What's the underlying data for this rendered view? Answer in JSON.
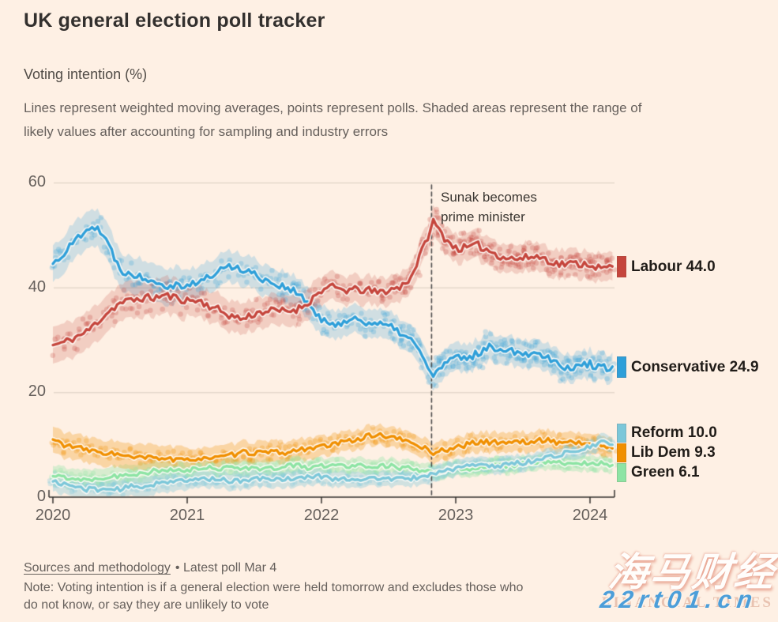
{
  "header": {
    "title": "UK general election poll tracker",
    "subtitle": "Voting intention (%)",
    "description_lines": [
      "Lines represent weighted moving averages, points represent polls. Shaded areas represent the range of",
      "likely values after accounting for sampling and industry errors"
    ]
  },
  "annotation": {
    "lines": [
      "Sunak becomes",
      "prime minister"
    ]
  },
  "footer": {
    "sources_link": "Sources and methodology",
    "latest_poll": "• Latest poll Mar 4",
    "note_lines": [
      "Note: Voting intention is if a general election were held tomorrow and excludes those who",
      "do not know, or say they are unlikely to vote"
    ]
  },
  "watermark": {
    "cjk": "海马财经",
    "ft_text": "FINANCIAL TIMES",
    "url": "22rt01.cn",
    "url_color": "#4C9ED9",
    "ft_color": "#E9C3B1"
  },
  "chart_data": {
    "type": "line",
    "title": "UK general election poll tracker",
    "ylabel": "Voting intention (%)",
    "xlabel": "",
    "grid": true,
    "legend_position": "right",
    "ylim": [
      0,
      60
    ],
    "xlim": [
      2020.0,
      2024.25
    ],
    "y_ticks": [
      0,
      20,
      40,
      60
    ],
    "x_ticks": [
      2020,
      2021,
      2022,
      2023,
      2024
    ],
    "event_line": {
      "x": 2022.82,
      "label": "Sunak becomes prime minister"
    },
    "colors": {
      "background": "#FEF0E4",
      "gridline": "#D8CCBF",
      "axis": "#33302E",
      "labour": "#C5453C",
      "conservative": "#2E9FD9",
      "reform": "#7CC7D9",
      "libdem": "#F08F00",
      "green": "#8DE4A4"
    },
    "x": [
      2020.0,
      2020.083,
      2020.167,
      2020.25,
      2020.333,
      2020.417,
      2020.5,
      2020.583,
      2020.667,
      2020.75,
      2020.833,
      2020.917,
      2021.0,
      2021.083,
      2021.167,
      2021.25,
      2021.333,
      2021.417,
      2021.5,
      2021.583,
      2021.667,
      2021.75,
      2021.833,
      2021.917,
      2022.0,
      2022.083,
      2022.167,
      2022.25,
      2022.333,
      2022.417,
      2022.5,
      2022.583,
      2022.667,
      2022.75,
      2022.833,
      2022.917,
      2023.0,
      2023.083,
      2023.167,
      2023.25,
      2023.333,
      2023.417,
      2023.5,
      2023.583,
      2023.667,
      2023.75,
      2023.833,
      2023.917,
      2024.0,
      2024.083,
      2024.167
    ],
    "series": [
      {
        "name": "Labour",
        "latest": 44.0,
        "color": "#C5453C",
        "values": [
          29,
          29.5,
          30.5,
          31.5,
          33.5,
          35.5,
          37,
          37.5,
          38,
          38,
          38.5,
          38,
          37.5,
          37.5,
          36.5,
          35.5,
          34.5,
          34,
          35,
          35.5,
          35.5,
          35.5,
          36,
          37.5,
          39.5,
          40,
          39.5,
          39.5,
          39.5,
          39,
          39.5,
          40,
          42,
          47,
          52.5,
          49.5,
          47.5,
          47.5,
          48,
          47,
          46,
          45.5,
          45.5,
          46,
          45.5,
          44.5,
          44.5,
          44.5,
          44.5,
          43.5,
          44.0
        ]
      },
      {
        "name": "Conservative",
        "latest": 24.9,
        "color": "#2E9FD9",
        "values": [
          44.5,
          46.5,
          49,
          51.5,
          51.5,
          48,
          43.5,
          42.5,
          42,
          41.5,
          40.5,
          40.5,
          40.5,
          41,
          42,
          43.5,
          44,
          43.5,
          42.5,
          41.5,
          40.5,
          40,
          38.5,
          36.5,
          33.5,
          33,
          33.5,
          34,
          33.5,
          33,
          32.5,
          31.5,
          30,
          27,
          23,
          25.5,
          26.5,
          26.5,
          27.5,
          28.5,
          28.5,
          28,
          27.5,
          27.5,
          27,
          26,
          24.5,
          25,
          25.5,
          24.5,
          24.9
        ]
      },
      {
        "name": "Reform",
        "latest": 10.0,
        "color": "#7CC7D9",
        "values": [
          3,
          2.5,
          2,
          1.5,
          1.5,
          1.5,
          1.5,
          2,
          2,
          2.5,
          3,
          3,
          3,
          3.5,
          3.5,
          3.5,
          3,
          3,
          3.5,
          3.5,
          3.5,
          3.5,
          3.5,
          4,
          4,
          3.5,
          3.5,
          3.5,
          3.5,
          3.5,
          3.5,
          3.5,
          3.5,
          4,
          4.5,
          5,
          5.5,
          6,
          6,
          6,
          6,
          6.5,
          6.5,
          7,
          7.5,
          8,
          8.5,
          9,
          9.5,
          10.5,
          10.0
        ]
      },
      {
        "name": "Lib Dem",
        "latest": 9.3,
        "color": "#F08F00",
        "values": [
          11,
          10,
          9.5,
          9,
          8.5,
          8.5,
          8,
          7.5,
          7.5,
          7.5,
          7.5,
          7,
          7,
          7.5,
          7.5,
          7.5,
          8,
          8.5,
          8.5,
          8.5,
          8.5,
          8.5,
          9,
          9.5,
          9.5,
          10,
          10.5,
          11,
          11.5,
          12,
          11.5,
          11,
          10.5,
          9.5,
          8.5,
          9,
          9.5,
          10,
          10.5,
          10.5,
          10.5,
          10.5,
          10.5,
          10.5,
          11,
          10.5,
          10.5,
          10.5,
          10,
          10,
          9.3
        ]
      },
      {
        "name": "Green",
        "latest": 6.1,
        "color": "#8DE4A4",
        "values": [
          4,
          3.8,
          3.5,
          3.5,
          3.5,
          4,
          4,
          4.5,
          4.5,
          5,
          5,
          5,
          5,
          5.5,
          5.5,
          5.5,
          6,
          5.5,
          5.5,
          5.5,
          5.5,
          6,
          6,
          5.5,
          6,
          6,
          6,
          6,
          6,
          6,
          6,
          5.5,
          5.5,
          5,
          4.5,
          5,
          5.5,
          5.5,
          5.5,
          6,
          6,
          6,
          6.5,
          6.5,
          6.5,
          6.5,
          6.5,
          6.5,
          6.5,
          6.5,
          6.1
        ]
      }
    ],
    "legend": [
      {
        "label": "Labour 44.0",
        "color": "#C5453C"
      },
      {
        "label": "Conservative 24.9",
        "color": "#2E9FD9"
      },
      {
        "label": "Reform 10.0",
        "color": "#7CC7D9"
      },
      {
        "label": "Lib Dem 9.3",
        "color": "#F08F00"
      },
      {
        "label": "Green 6.1",
        "color": "#8DE4A4"
      }
    ]
  }
}
